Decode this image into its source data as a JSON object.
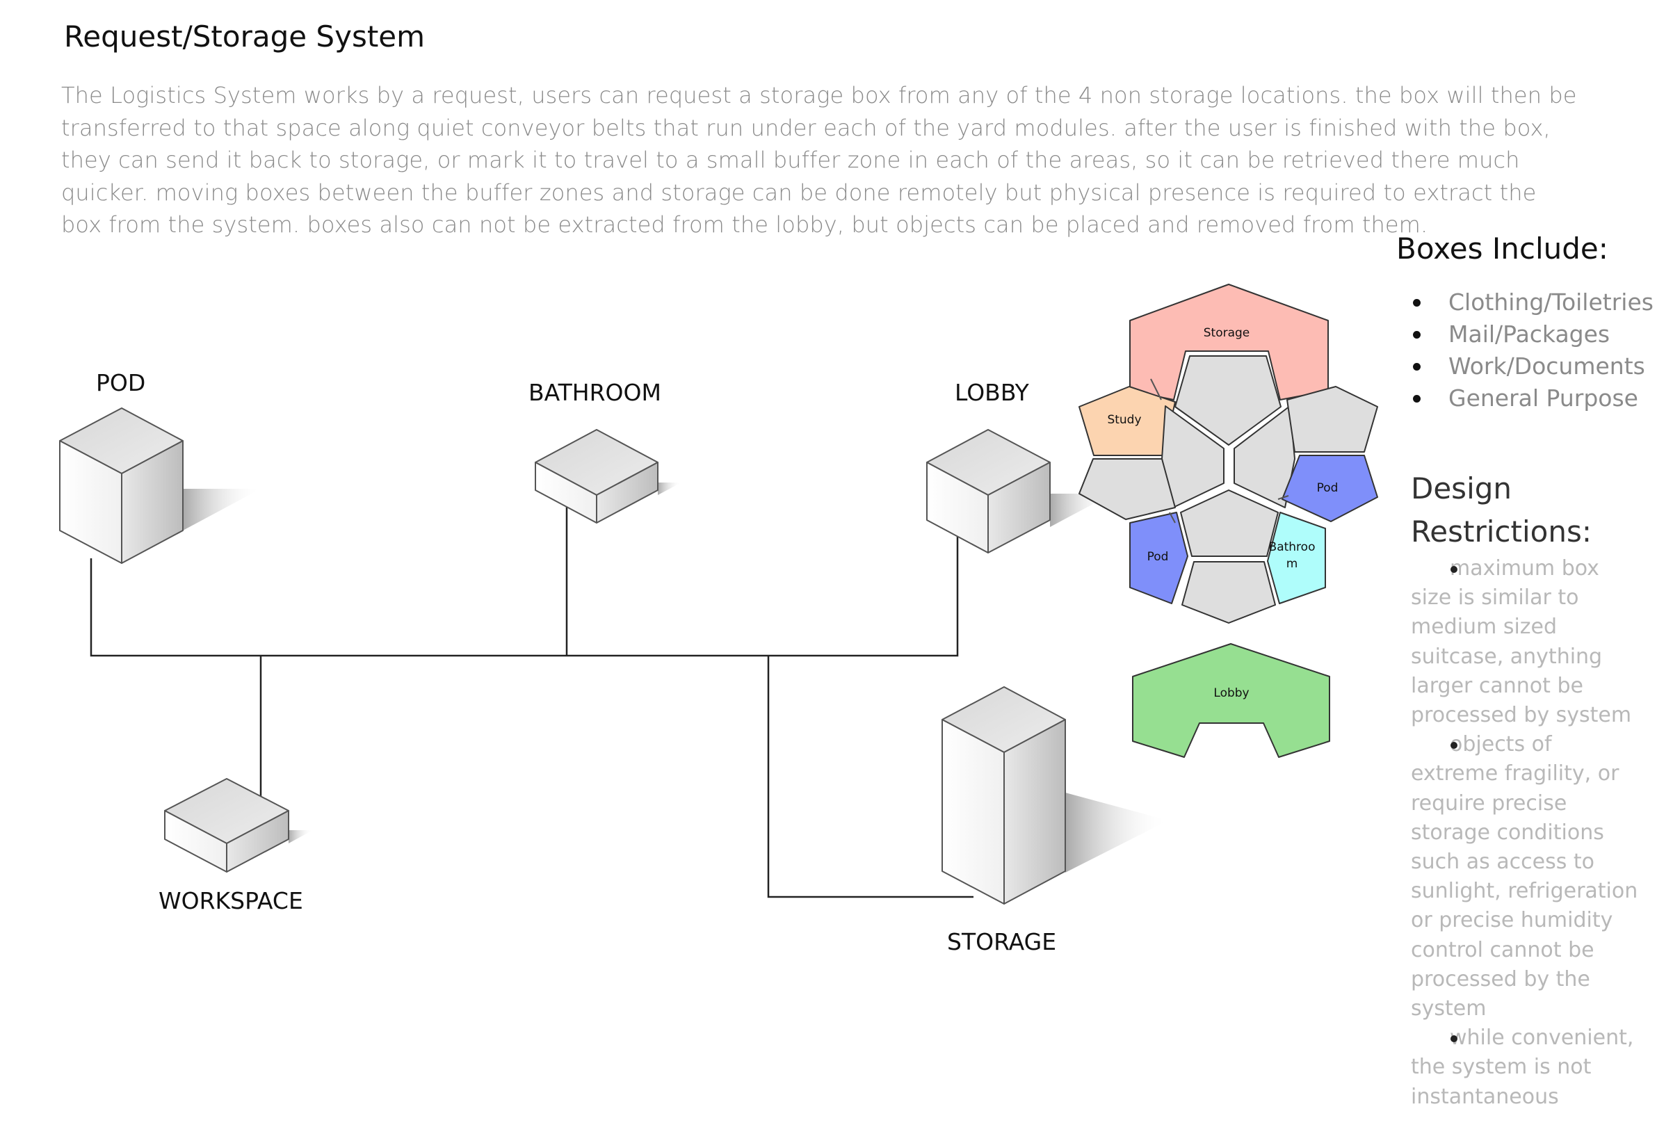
{
  "header": {
    "title": "Request/Storage System"
  },
  "intro": {
    "lines": [
      "The Logistics System works by a request, users can request a storage box from any of the 4 non storage locations. the box will then be",
      "transferred to that space along quiet conveyor belts that run under each of the yard modules. after the user is finished with the box,",
      "they can send it back to storage, or mark it to travel to a small buffer zone in each of the areas, so it can be retrieved there much",
      "quicker. moving boxes between the buffer zones and storage can be done remotely but physical presence is required to extract the",
      "box from the system. boxes also can not be extracted from the lobby, but objects can be placed and removed from them."
    ]
  },
  "nodes": {
    "pod": "POD",
    "bathroom": "BATHROOM",
    "lobby": "LOBBY",
    "workspace": "WORKSPACE",
    "storage": "STORAGE"
  },
  "zones": {
    "storage": "Storage",
    "study": "Study",
    "pod_right": "Pod",
    "pod_left": "Pod",
    "bathroom_line1": "Bathroo",
    "bathroom_line2": "m",
    "lobby": "Lobby",
    "colors": {
      "storage": "#FDBCB4",
      "study": "#FCD4B0",
      "pod": "#7F8FFA",
      "bathroom": "#AFFDFB",
      "lobby": "#96DF91",
      "neutral": "#DEDEDE"
    }
  },
  "boxes_include": {
    "title": "Boxes Include:",
    "items": [
      "Clothing/Toiletries",
      "Mail/Packages",
      "Work/Documents",
      "General Purpose"
    ]
  },
  "design_restrictions": {
    "title": "Design Restrictions:",
    "items": [
      "maximum box size is similar to medium sized suitcase, anything larger cannot be processed by system",
      "objects of extreme fragility, or require precise storage conditions such as access to sunlight, refrigeration or precise humidity control cannot be processed by the system",
      "while convenient, the system is not instantaneous"
    ]
  }
}
